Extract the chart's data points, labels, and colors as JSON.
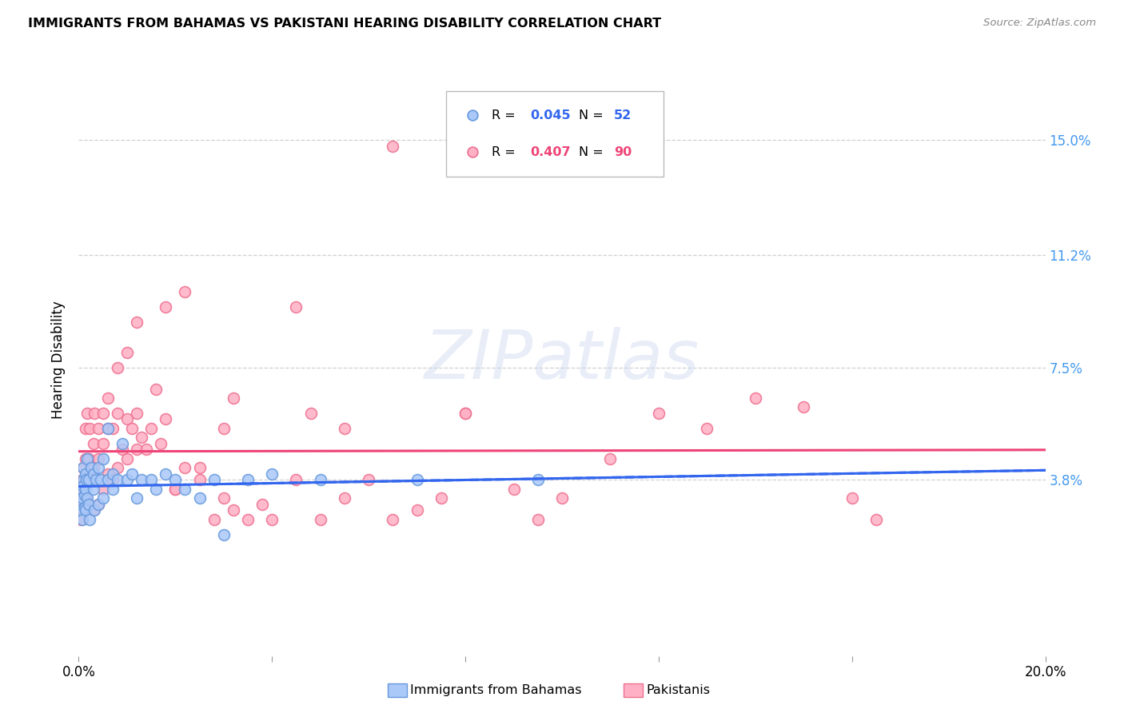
{
  "title": "IMMIGRANTS FROM BAHAMAS VS PAKISTANI HEARING DISABILITY CORRELATION CHART",
  "source": "Source: ZipAtlas.com",
  "ylabel": "Hearing Disability",
  "right_yticks": [
    0.038,
    0.075,
    0.112,
    0.15
  ],
  "right_yticklabels": [
    "3.8%",
    "7.5%",
    "11.2%",
    "15.0%"
  ],
  "xlim": [
    0.0,
    0.2
  ],
  "ylim": [
    -0.02,
    0.175
  ],
  "blue_r": "0.045",
  "blue_n": "52",
  "pink_r": "0.407",
  "pink_n": "90",
  "scatter_blue_color": "#aac8f8",
  "scatter_blue_edge": "#6699dd",
  "scatter_pink_color": "#ffb0c4",
  "scatter_pink_edge": "#ee7090",
  "blue_line_color": "#3366ee",
  "pink_line_color": "#ee4477",
  "watermark_color": "#ccd8f0",
  "watermark_text": "ZIPatlas",
  "background": "#ffffff",
  "grid_color": "#cccccc",
  "bottom_legend": [
    "Immigrants from Bahamas",
    "Pakistanis"
  ],
  "blue_scatter_x": [
    0.0003,
    0.0005,
    0.0006,
    0.0007,
    0.0008,
    0.0009,
    0.001,
    0.001,
    0.0012,
    0.0013,
    0.0014,
    0.0015,
    0.0015,
    0.0016,
    0.0017,
    0.0018,
    0.002,
    0.002,
    0.0022,
    0.0025,
    0.003,
    0.003,
    0.0032,
    0.0035,
    0.004,
    0.004,
    0.0045,
    0.005,
    0.005,
    0.006,
    0.006,
    0.007,
    0.007,
    0.008,
    0.009,
    0.01,
    0.011,
    0.012,
    0.013,
    0.015,
    0.016,
    0.018,
    0.02,
    0.022,
    0.025,
    0.028,
    0.03,
    0.035,
    0.04,
    0.05,
    0.07,
    0.095
  ],
  "blue_scatter_y": [
    0.03,
    0.028,
    0.035,
    0.032,
    0.025,
    0.038,
    0.036,
    0.042,
    0.033,
    0.029,
    0.04,
    0.035,
    0.028,
    0.038,
    0.032,
    0.045,
    0.03,
    0.038,
    0.025,
    0.042,
    0.035,
    0.04,
    0.028,
    0.038,
    0.03,
    0.042,
    0.038,
    0.032,
    0.045,
    0.038,
    0.055,
    0.035,
    0.04,
    0.038,
    0.05,
    0.038,
    0.04,
    0.032,
    0.038,
    0.038,
    0.035,
    0.04,
    0.038,
    0.035,
    0.032,
    0.038,
    0.02,
    0.038,
    0.04,
    0.038,
    0.038,
    0.038
  ],
  "pink_scatter_x": [
    0.0003,
    0.0004,
    0.0005,
    0.0006,
    0.0007,
    0.0008,
    0.0009,
    0.001,
    0.001,
    0.0012,
    0.0013,
    0.0014,
    0.0015,
    0.0015,
    0.0016,
    0.0018,
    0.002,
    0.002,
    0.0022,
    0.0025,
    0.003,
    0.003,
    0.003,
    0.0032,
    0.004,
    0.004,
    0.004,
    0.005,
    0.005,
    0.005,
    0.006,
    0.006,
    0.006,
    0.007,
    0.007,
    0.008,
    0.008,
    0.009,
    0.01,
    0.01,
    0.011,
    0.012,
    0.012,
    0.013,
    0.014,
    0.015,
    0.016,
    0.017,
    0.018,
    0.02,
    0.022,
    0.025,
    0.028,
    0.03,
    0.032,
    0.035,
    0.038,
    0.04,
    0.045,
    0.048,
    0.05,
    0.055,
    0.06,
    0.065,
    0.07,
    0.075,
    0.08,
    0.09,
    0.095,
    0.1,
    0.11,
    0.12,
    0.13,
    0.14,
    0.15,
    0.16,
    0.165,
    0.045,
    0.055,
    0.02,
    0.025,
    0.03,
    0.008,
    0.01,
    0.012,
    0.018,
    0.022,
    0.032,
    0.065,
    0.08
  ],
  "pink_scatter_y": [
    0.028,
    0.032,
    0.025,
    0.035,
    0.03,
    0.038,
    0.028,
    0.035,
    0.042,
    0.03,
    0.038,
    0.045,
    0.032,
    0.055,
    0.038,
    0.06,
    0.04,
    0.045,
    0.055,
    0.038,
    0.028,
    0.042,
    0.05,
    0.06,
    0.03,
    0.045,
    0.055,
    0.035,
    0.05,
    0.06,
    0.04,
    0.055,
    0.065,
    0.038,
    0.055,
    0.042,
    0.06,
    0.048,
    0.045,
    0.058,
    0.055,
    0.048,
    0.06,
    0.052,
    0.048,
    0.055,
    0.068,
    0.05,
    0.058,
    0.035,
    0.042,
    0.038,
    0.025,
    0.032,
    0.028,
    0.025,
    0.03,
    0.025,
    0.038,
    0.06,
    0.025,
    0.032,
    0.038,
    0.025,
    0.028,
    0.032,
    0.06,
    0.035,
    0.025,
    0.032,
    0.045,
    0.06,
    0.055,
    0.065,
    0.062,
    0.032,
    0.025,
    0.095,
    0.055,
    0.035,
    0.042,
    0.055,
    0.075,
    0.08,
    0.09,
    0.095,
    0.1,
    0.065,
    0.148,
    0.06
  ]
}
